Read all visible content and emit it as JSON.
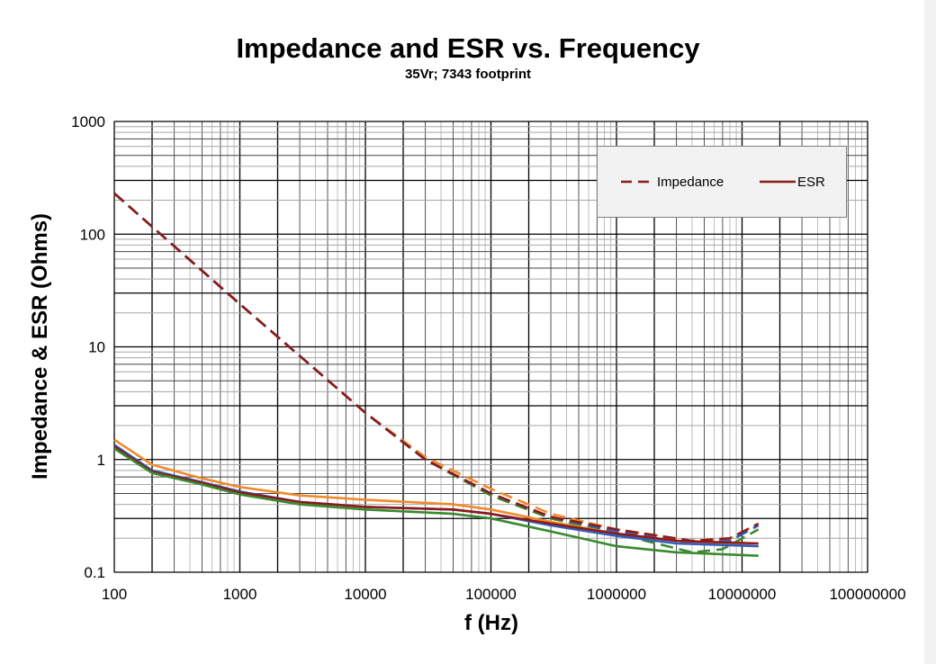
{
  "chart_data": {
    "type": "line",
    "title": "Impedance and ESR vs. Frequency",
    "subtitle": "35Vr; 7343 footprint",
    "xlabel": "f (Hz)",
    "ylabel": "Impedance & ESR (Ohms)",
    "xscale": "log",
    "yscale": "log",
    "xlim": [
      100,
      100000000
    ],
    "ylim": [
      0.1,
      1000
    ],
    "xticks": [
      "100",
      "1000",
      "10000",
      "100000",
      "1000000",
      "10000000",
      "100000000"
    ],
    "yticks": [
      "0.1",
      "1",
      "10",
      "100",
      "1000"
    ],
    "grid": true,
    "legend": {
      "placement": "top-right",
      "entries": [
        {
          "label": "Impedance",
          "style": "dashed",
          "color": "#8b1a1a"
        },
        {
          "label": "ESR",
          "style": "solid",
          "color": "#8b1a1a"
        }
      ]
    },
    "series": [
      {
        "kind": "impedance",
        "style": "dashed",
        "color": "#3a8a2e",
        "points": [
          [
            100,
            230
          ],
          [
            1000,
            24
          ],
          [
            10000,
            2.6
          ],
          [
            30000,
            1.0
          ],
          [
            100000,
            0.48
          ],
          [
            300000,
            0.3
          ],
          [
            1000000,
            0.22
          ],
          [
            4000000,
            0.15
          ],
          [
            7000000,
            0.16
          ],
          [
            13500000,
            0.24
          ]
        ]
      },
      {
        "kind": "impedance",
        "style": "dashed",
        "color": "#f08a2a",
        "points": [
          [
            100,
            230
          ],
          [
            1000,
            24
          ],
          [
            10000,
            2.6
          ],
          [
            30000,
            1.05
          ],
          [
            100000,
            0.55
          ],
          [
            300000,
            0.33
          ],
          [
            1000000,
            0.24
          ],
          [
            4000000,
            0.19
          ],
          [
            8000000,
            0.2
          ],
          [
            13500000,
            0.27
          ]
        ]
      },
      {
        "kind": "impedance",
        "style": "dashed",
        "color": "#2f5fbf",
        "points": [
          [
            100,
            230
          ],
          [
            1000,
            24
          ],
          [
            10000,
            2.6
          ],
          [
            30000,
            1.0
          ],
          [
            100000,
            0.5
          ],
          [
            300000,
            0.31
          ],
          [
            1000000,
            0.23
          ],
          [
            4000000,
            0.18
          ],
          [
            8000000,
            0.19
          ],
          [
            13500000,
            0.26
          ]
        ]
      },
      {
        "kind": "impedance",
        "style": "dashed",
        "color": "#8b1a1a",
        "points": [
          [
            100,
            230
          ],
          [
            1000,
            24
          ],
          [
            10000,
            2.6
          ],
          [
            30000,
            1.0
          ],
          [
            100000,
            0.5
          ],
          [
            300000,
            0.31
          ],
          [
            1000000,
            0.24
          ],
          [
            4000000,
            0.19
          ],
          [
            8000000,
            0.2
          ],
          [
            13500000,
            0.27
          ]
        ]
      },
      {
        "kind": "esr",
        "style": "solid",
        "color": "#f08a2a",
        "points": [
          [
            100,
            1.5
          ],
          [
            200,
            0.9
          ],
          [
            500,
            0.68
          ],
          [
            1000,
            0.57
          ],
          [
            3000,
            0.48
          ],
          [
            10000,
            0.44
          ],
          [
            50000,
            0.4
          ],
          [
            100000,
            0.36
          ],
          [
            300000,
            0.28
          ],
          [
            1000000,
            0.22
          ],
          [
            3000000,
            0.19
          ],
          [
            13500000,
            0.17
          ]
        ]
      },
      {
        "kind": "esr",
        "style": "solid",
        "color": "#2f5fbf",
        "points": [
          [
            100,
            1.35
          ],
          [
            200,
            0.8
          ],
          [
            500,
            0.63
          ],
          [
            1000,
            0.52
          ],
          [
            3000,
            0.42
          ],
          [
            10000,
            0.38
          ],
          [
            50000,
            0.36
          ],
          [
            100000,
            0.33
          ],
          [
            300000,
            0.26
          ],
          [
            1000000,
            0.21
          ],
          [
            3000000,
            0.18
          ],
          [
            13500000,
            0.17
          ]
        ]
      },
      {
        "kind": "esr",
        "style": "solid",
        "color": "#8b1a1a",
        "points": [
          [
            100,
            1.3
          ],
          [
            200,
            0.78
          ],
          [
            500,
            0.62
          ],
          [
            1000,
            0.51
          ],
          [
            3000,
            0.42
          ],
          [
            10000,
            0.38
          ],
          [
            50000,
            0.36
          ],
          [
            100000,
            0.33
          ],
          [
            300000,
            0.27
          ],
          [
            1000000,
            0.22
          ],
          [
            3000000,
            0.19
          ],
          [
            13500000,
            0.18
          ]
        ]
      },
      {
        "kind": "esr",
        "style": "solid",
        "color": "#3a8a2e",
        "points": [
          [
            100,
            1.25
          ],
          [
            200,
            0.76
          ],
          [
            500,
            0.6
          ],
          [
            1000,
            0.49
          ],
          [
            3000,
            0.4
          ],
          [
            10000,
            0.36
          ],
          [
            50000,
            0.33
          ],
          [
            100000,
            0.3
          ],
          [
            300000,
            0.23
          ],
          [
            1000000,
            0.17
          ],
          [
            3000000,
            0.15
          ],
          [
            13500000,
            0.14
          ]
        ]
      }
    ]
  }
}
